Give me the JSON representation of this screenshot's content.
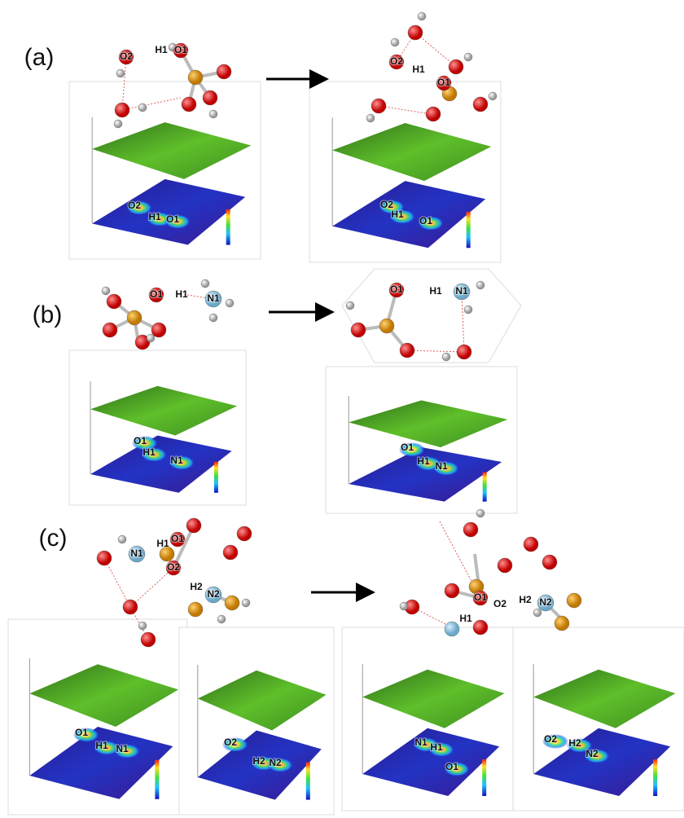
{
  "panels": [
    {
      "label": "(a)",
      "before": {
        "molecule": [
          "O2",
          "H1",
          "O1"
        ],
        "maps": [
          [
            "O2",
            "H1",
            "O1"
          ]
        ]
      },
      "after": {
        "molecule": [
          "O2",
          "H1",
          "O1"
        ],
        "maps": [
          [
            "O2",
            "H1",
            "O1"
          ]
        ]
      }
    },
    {
      "label": "(b)",
      "before": {
        "molecule": [
          "O1",
          "H1",
          "N1"
        ],
        "maps": [
          [
            "O1",
            "H1",
            "N1"
          ]
        ]
      },
      "after": {
        "molecule": [
          "O1",
          "H1",
          "N1"
        ],
        "maps": [
          [
            "O1",
            "H1",
            "N1"
          ]
        ]
      }
    },
    {
      "label": "(c)",
      "before": {
        "molecule": [
          "H1",
          "O1",
          "N1",
          "O2",
          "H2",
          "N2"
        ],
        "maps": [
          [
            "O1",
            "H1",
            "N1"
          ],
          [
            "O2",
            "H2",
            "N2"
          ]
        ]
      },
      "after": {
        "molecule": [
          "O1",
          "O2",
          "H2",
          "N2",
          "H1"
        ],
        "maps": [
          [
            "N1",
            "H1",
            "O1"
          ],
          [
            "O2",
            "H2",
            "N2"
          ]
        ]
      }
    }
  ]
}
